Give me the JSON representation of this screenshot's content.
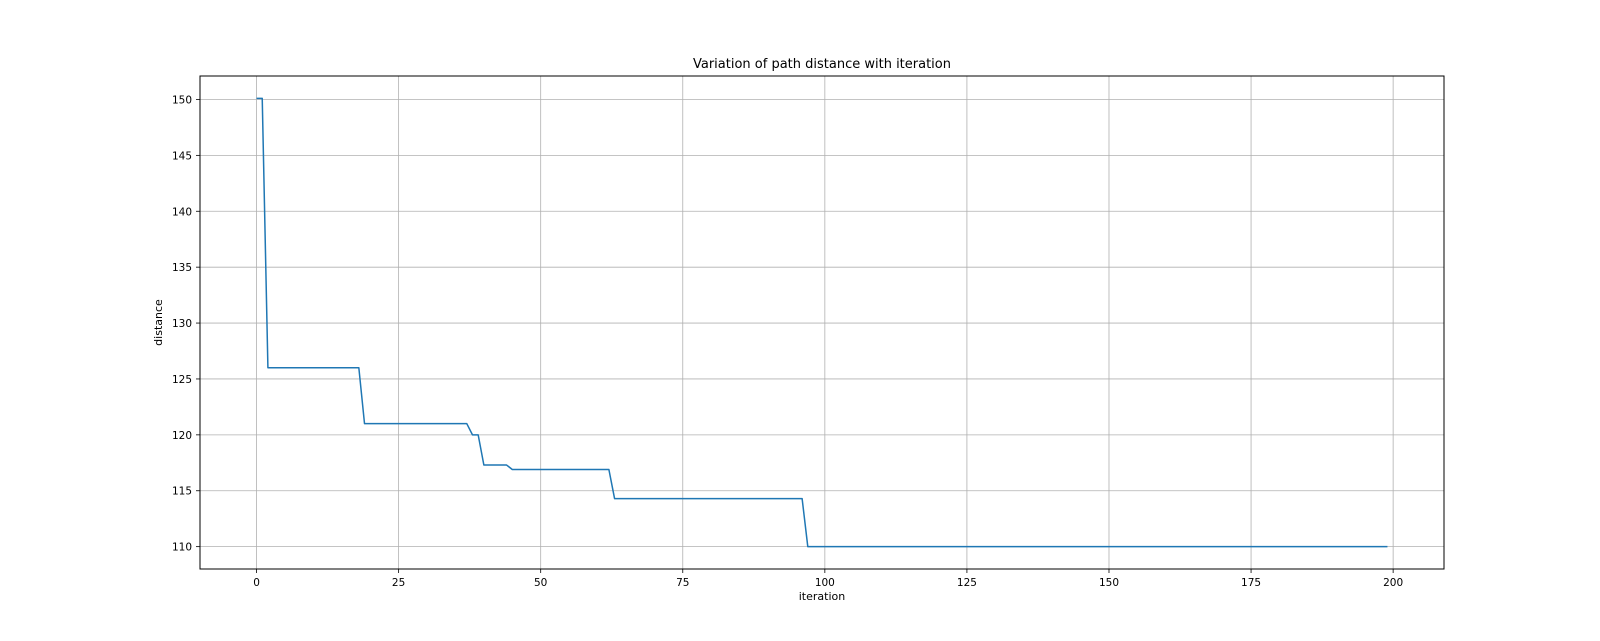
{
  "chart_data": {
    "type": "line",
    "title": "Variation of path distance with iteration",
    "xlabel": "iteration",
    "ylabel": "distance",
    "xlim": [
      -9.95,
      208.95
    ],
    "ylim": [
      108.0,
      152.1
    ],
    "xticks": [
      0,
      25,
      50,
      75,
      100,
      125,
      150,
      175,
      200
    ],
    "yticks": [
      110,
      115,
      120,
      125,
      130,
      135,
      140,
      145,
      150
    ],
    "grid": true,
    "legend": "none",
    "series": [
      {
        "color": "#1f77b4",
        "points": [
          [
            0,
            150.1
          ],
          [
            1,
            150.1
          ],
          [
            2,
            126.0
          ],
          [
            18,
            126.0
          ],
          [
            19,
            121.0
          ],
          [
            37,
            121.0
          ],
          [
            38,
            120.0
          ],
          [
            39,
            120.0
          ],
          [
            40,
            117.3
          ],
          [
            44,
            117.3
          ],
          [
            45,
            116.9
          ],
          [
            62,
            116.9
          ],
          [
            63,
            114.3
          ],
          [
            96,
            114.3
          ],
          [
            97,
            110.0
          ],
          [
            199,
            110.0
          ]
        ]
      }
    ]
  }
}
